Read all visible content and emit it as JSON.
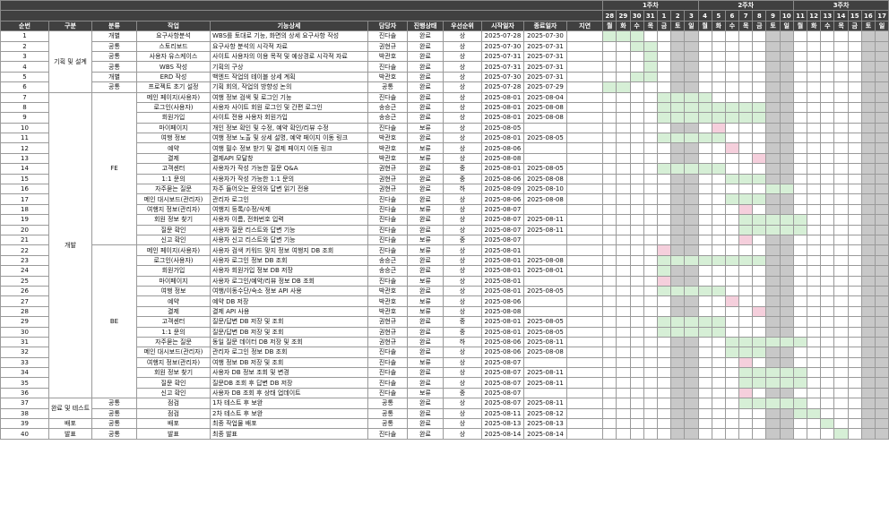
{
  "weeks": [
    "1주차",
    "2주차",
    "3주차"
  ],
  "days": [
    {
      "d": "28",
      "w": "월"
    },
    {
      "d": "29",
      "w": "화"
    },
    {
      "d": "30",
      "w": "수"
    },
    {
      "d": "31",
      "w": "목"
    },
    {
      "d": "1",
      "w": "금"
    },
    {
      "d": "2",
      "w": "토"
    },
    {
      "d": "3",
      "w": "일"
    },
    {
      "d": "4",
      "w": "월"
    },
    {
      "d": "5",
      "w": "화"
    },
    {
      "d": "6",
      "w": "수"
    },
    {
      "d": "7",
      "w": "목"
    },
    {
      "d": "8",
      "w": "금"
    },
    {
      "d": "9",
      "w": "토"
    },
    {
      "d": "10",
      "w": "일"
    },
    {
      "d": "11",
      "w": "월"
    },
    {
      "d": "12",
      "w": "화"
    },
    {
      "d": "13",
      "w": "수"
    },
    {
      "d": "14",
      "w": "목"
    },
    {
      "d": "15",
      "w": "금"
    },
    {
      "d": "16",
      "w": "토"
    },
    {
      "d": "17",
      "w": "일"
    }
  ],
  "headers": {
    "no": "순번",
    "cat": "구분",
    "cls": "분류",
    "task": "작업",
    "func": "기능상세",
    "owner": "담당자",
    "status": "진행상태",
    "prio": "우선순위",
    "start": "시작일자",
    "end": "종료일자",
    "delay": "지연"
  },
  "groups": {
    "plan": "기획 및 설계",
    "dev": "개발",
    "test": "완료 및 테스트",
    "deploy": "배포",
    "present": "발표",
    "fe": "FE",
    "be": "BE"
  },
  "colors": {
    "done": "#d6efd6",
    "hold": "#f5cfdc",
    "weekend": "#c8c8c8",
    "header": "#404040"
  },
  "rows": [
    {
      "no": "1",
      "cls": "개별",
      "task": "요구사항분석",
      "func": "WBS를 토대로 기능, 화면의 상세 요구사항 작성",
      "owner": "진다솔",
      "status": "완료",
      "prio": "상",
      "start": "2025-07-28",
      "end": "2025-07-30",
      "delay": ""
    },
    {
      "no": "2",
      "cls": "공통",
      "task": "스토리보드",
      "func": "요구사항 분석의 시각적 자료",
      "owner": "권현규",
      "status": "완료",
      "prio": "상",
      "start": "2025-07-30",
      "end": "2025-07-31",
      "delay": ""
    },
    {
      "no": "3",
      "cls": "공통",
      "task": "사용자 유스케이스",
      "func": "사이트 사용자의 이용 목적 및 예상경로 시각적 자료",
      "owner": "박관호",
      "status": "완료",
      "prio": "상",
      "start": "2025-07-31",
      "end": "2025-07-31",
      "delay": ""
    },
    {
      "no": "4",
      "cls": "공통",
      "task": "WBS 작성",
      "func": "기획의 구상",
      "owner": "진다솔",
      "status": "완료",
      "prio": "상",
      "start": "2025-07-31",
      "end": "2025-07-31",
      "delay": ""
    },
    {
      "no": "5",
      "cls": "개별",
      "task": "ERD 작성",
      "func": "백엔드 작업의 테이블 상세 계획",
      "owner": "박관호",
      "status": "완료",
      "prio": "상",
      "start": "2025-07-30",
      "end": "2025-07-31",
      "delay": ""
    },
    {
      "no": "6",
      "cls": "공통",
      "task": "프로젝트 초기 설정",
      "func": "기획 회의, 작업의 방향성 논의",
      "owner": "공통",
      "status": "완료",
      "prio": "상",
      "start": "2025-07-28",
      "end": "2025-07-29",
      "delay": ""
    },
    {
      "no": "7",
      "cls": "",
      "task": "메인 페이지(사용자)",
      "func": "여행 정보 검색 및 로그인 기능",
      "owner": "진다솔",
      "status": "완료",
      "prio": "상",
      "start": "2025-08-01",
      "end": "2025-08-04",
      "delay": ""
    },
    {
      "no": "8",
      "cls": "",
      "task": "로그인(사용자)",
      "func": "사용자 사이트 회원 로그인 및 간편 로그인",
      "owner": "송승근",
      "status": "완료",
      "prio": "상",
      "start": "2025-08-01",
      "end": "2025-08-08",
      "delay": ""
    },
    {
      "no": "9",
      "cls": "",
      "task": "회원가입",
      "func": "사이트 전용 사용자 회원가입",
      "owner": "송승근",
      "status": "완료",
      "prio": "상",
      "start": "2025-08-01",
      "end": "2025-08-08",
      "delay": ""
    },
    {
      "no": "10",
      "cls": "",
      "task": "마이페이지",
      "func": "개인 정보 확인 및 수정, 예약 확인/리뷰 수정",
      "owner": "진다솔",
      "status": "보류",
      "prio": "상",
      "start": "2025-08-05",
      "end": "",
      "delay": ""
    },
    {
      "no": "11",
      "cls": "",
      "task": "여행 정보",
      "func": "여행 정보 노출 및 상세 설명, 예약 페이지 이동 링크",
      "owner": "박관호",
      "status": "완료",
      "prio": "상",
      "start": "2025-08-01",
      "end": "2025-08-05",
      "delay": ""
    },
    {
      "no": "12",
      "cls": "",
      "task": "예약",
      "func": "여행 필수 정보 받기 및 결제 페이지 이동 링크",
      "owner": "박관호",
      "status": "보류",
      "prio": "상",
      "start": "2025-08-06",
      "end": "",
      "delay": ""
    },
    {
      "no": "13",
      "cls": "",
      "task": "결제",
      "func": "결제API 모달창",
      "owner": "박관호",
      "status": "보류",
      "prio": "상",
      "start": "2025-08-08",
      "end": "",
      "delay": ""
    },
    {
      "no": "14",
      "cls": "",
      "task": "고객센터",
      "func": "사용자가 작성 가능한 질문 Q&A",
      "owner": "권현규",
      "status": "완료",
      "prio": "중",
      "start": "2025-08-01",
      "end": "2025-08-05",
      "delay": ""
    },
    {
      "no": "15",
      "cls": "",
      "task": "1:1 문의",
      "func": "사용자가 작성 가능한 1:1 문의",
      "owner": "권현규",
      "status": "완료",
      "prio": "중",
      "start": "2025-08-06",
      "end": "2025-08-08",
      "delay": ""
    },
    {
      "no": "16",
      "cls": "",
      "task": "자주묻는 질문",
      "func": "자주 들어오는 문의와 답변 읽기 전용",
      "owner": "권현규",
      "status": "완료",
      "prio": "하",
      "start": "2025-08-09",
      "end": "2025-08-10",
      "delay": ""
    },
    {
      "no": "17",
      "cls": "",
      "task": "메인 대시보드(관리자)",
      "func": "관리자 로그인",
      "owner": "진다솔",
      "status": "완료",
      "prio": "상",
      "start": "2025-08-06",
      "end": "2025-08-08",
      "delay": ""
    },
    {
      "no": "18",
      "cls": "",
      "task": "여행지 정보(관리자)",
      "func": "여행지 등록/수정/삭제",
      "owner": "진다솔",
      "status": "보류",
      "prio": "상",
      "start": "2025-08-07",
      "end": "",
      "delay": ""
    },
    {
      "no": "19",
      "cls": "",
      "task": "회원 정보 찾기",
      "func": "사용자 이름, 전화번호 입력",
      "owner": "진다솔",
      "status": "완료",
      "prio": "상",
      "start": "2025-08-07",
      "end": "2025-08-11",
      "delay": ""
    },
    {
      "no": "20",
      "cls": "",
      "task": "질문 확인",
      "func": "사용자 질문 리스트와 답변 기능",
      "owner": "진다솔",
      "status": "완료",
      "prio": "상",
      "start": "2025-08-07",
      "end": "2025-08-11",
      "delay": ""
    },
    {
      "no": "21",
      "cls": "",
      "task": "신고 확인",
      "func": "사용자 신고 리스트와 답변 기능",
      "owner": "진다솔",
      "status": "보류",
      "prio": "중",
      "start": "2025-08-07",
      "end": "",
      "delay": ""
    },
    {
      "no": "22",
      "cls": "",
      "task": "메인 페이지(사용자)",
      "func": "사용자 검색 키워드 맞지 정보 여행지 DB 조회",
      "owner": "진다솔",
      "status": "보류",
      "prio": "상",
      "start": "2025-08-01",
      "end": "",
      "delay": ""
    },
    {
      "no": "23",
      "cls": "",
      "task": "로그인(사용자)",
      "func": "사용자 로그인 정보 DB 조회",
      "owner": "송승근",
      "status": "완료",
      "prio": "상",
      "start": "2025-08-01",
      "end": "2025-08-08",
      "delay": ""
    },
    {
      "no": "24",
      "cls": "",
      "task": "회원가입",
      "func": "사용자 회원가입 정보 DB 저장",
      "owner": "송승근",
      "status": "완료",
      "prio": "상",
      "start": "2025-08-01",
      "end": "2025-08-01",
      "delay": ""
    },
    {
      "no": "25",
      "cls": "",
      "task": "마이페이지",
      "func": "사용자 로그인/예약/리뷰 정보 DB 조회",
      "owner": "진다솔",
      "status": "보류",
      "prio": "상",
      "start": "2025-08-01",
      "end": "",
      "delay": ""
    },
    {
      "no": "26",
      "cls": "",
      "task": "여행 정보",
      "func": "여행/이동수단/숙소 정보 API 사용",
      "owner": "박관호",
      "status": "완료",
      "prio": "상",
      "start": "2025-08-01",
      "end": "2025-08-05",
      "delay": ""
    },
    {
      "no": "27",
      "cls": "",
      "task": "예약",
      "func": "예약 DB 저장",
      "owner": "박관호",
      "status": "보류",
      "prio": "상",
      "start": "2025-08-06",
      "end": "",
      "delay": ""
    },
    {
      "no": "28",
      "cls": "",
      "task": "결제",
      "func": "결제 API 사용",
      "owner": "박관호",
      "status": "보류",
      "prio": "상",
      "start": "2025-08-08",
      "end": "",
      "delay": ""
    },
    {
      "no": "29",
      "cls": "",
      "task": "고객센터",
      "func": "질문/답변 DB 저장 및 조회",
      "owner": "권현규",
      "status": "완료",
      "prio": "중",
      "start": "2025-08-01",
      "end": "2025-08-05",
      "delay": ""
    },
    {
      "no": "30",
      "cls": "",
      "task": "1:1 문의",
      "func": "질문/답변 DB 저장 및 조회",
      "owner": "권현규",
      "status": "완료",
      "prio": "중",
      "start": "2025-08-01",
      "end": "2025-08-05",
      "delay": ""
    },
    {
      "no": "31",
      "cls": "",
      "task": "자주묻는 질문",
      "func": "동일 질문 데이터 DB 저장 및 조회",
      "owner": "권현규",
      "status": "완료",
      "prio": "하",
      "start": "2025-08-06",
      "end": "2025-08-11",
      "delay": ""
    },
    {
      "no": "32",
      "cls": "",
      "task": "메인 대시보드(관리자)",
      "func": "관리자 로그인 정보 DB 조회",
      "owner": "진다솔",
      "status": "완료",
      "prio": "상",
      "start": "2025-08-06",
      "end": "2025-08-08",
      "delay": ""
    },
    {
      "no": "33",
      "cls": "",
      "task": "여행지 정보(관리자)",
      "func": "여행 정보 DB 저장 및 조회",
      "owner": "진다솔",
      "status": "보류",
      "prio": "상",
      "start": "2025-08-07",
      "end": "",
      "delay": ""
    },
    {
      "no": "34",
      "cls": "",
      "task": "회원 정보 찾기",
      "func": "사용자 DB 정보 조회 및 변경",
      "owner": "진다솔",
      "status": "완료",
      "prio": "상",
      "start": "2025-08-07",
      "end": "2025-08-11",
      "delay": ""
    },
    {
      "no": "35",
      "cls": "",
      "task": "질문 확인",
      "func": "질문DB 조회 후 답변 DB 저장",
      "owner": "진다솔",
      "status": "완료",
      "prio": "상",
      "start": "2025-08-07",
      "end": "2025-08-11",
      "delay": ""
    },
    {
      "no": "36",
      "cls": "",
      "task": "신고 확인",
      "func": "사용자 DB 조회 후 상태 업데이트",
      "owner": "진다솔",
      "status": "보류",
      "prio": "중",
      "start": "2025-08-07",
      "end": "",
      "delay": ""
    },
    {
      "no": "37",
      "cls": "공통",
      "task": "점검",
      "func": "1차 테스트 후 보완",
      "owner": "공통",
      "status": "완료",
      "prio": "상",
      "start": "2025-08-07",
      "end": "2025-08-11",
      "delay": ""
    },
    {
      "no": "38",
      "cls": "공통",
      "task": "점검",
      "func": "2차 테스트 후 보완",
      "owner": "공통",
      "status": "완료",
      "prio": "상",
      "start": "2025-08-11",
      "end": "2025-08-12",
      "delay": ""
    },
    {
      "no": "39",
      "cls": "공통",
      "task": "배포",
      "func": "최종 작업물 배포",
      "owner": "공통",
      "status": "완료",
      "prio": "상",
      "start": "2025-08-13",
      "end": "2025-08-13",
      "delay": ""
    },
    {
      "no": "40",
      "cls": "공통",
      "task": "발표",
      "func": "최종 발표",
      "owner": "진다솔",
      "status": "완료",
      "prio": "상",
      "start": "2025-08-14",
      "end": "2025-08-14",
      "delay": ""
    }
  ]
}
